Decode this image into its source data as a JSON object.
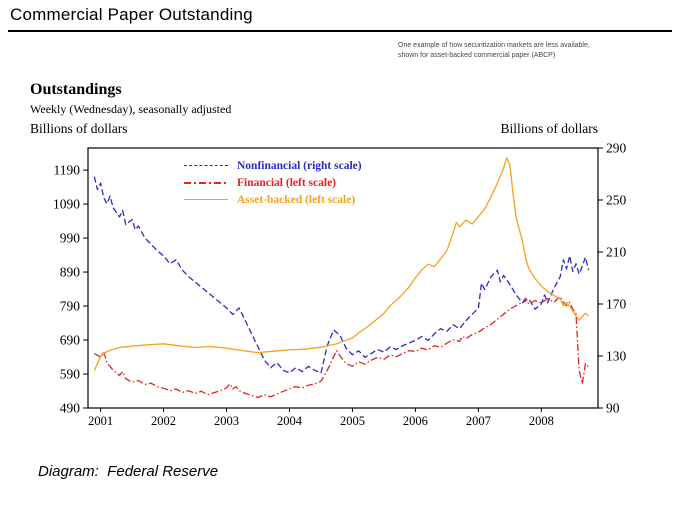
{
  "header": {
    "title": "Commercial Paper Outstanding"
  },
  "note": {
    "line1": "One example of how securitization markets are less available,",
    "line2": "shown for asset-backed commercial paper (ABCP)"
  },
  "chart": {
    "heading": "Outstandings",
    "subtitle": "Weekly (Wednesday), seasonally adjusted",
    "left_unit": "Billions of dollars",
    "right_unit": "Billions of dollars"
  },
  "footer": {
    "credit": "Diagram:  Federal Reserve"
  },
  "chart_data": {
    "type": "line",
    "title": "Outstandings",
    "subtitle": "Weekly (Wednesday), seasonally adjusted",
    "legend_position": "top-center-inside",
    "grid": false,
    "x_axis": {
      "ticks": [
        2001,
        2002,
        2003,
        2004,
        2005,
        2006,
        2007,
        2008
      ],
      "range": [
        2000.8,
        2008.9
      ]
    },
    "left_axis": {
      "label": "Billions of dollars",
      "ticks": [
        490,
        590,
        690,
        790,
        890,
        990,
        1090,
        1190
      ],
      "range_at_plot": [
        490,
        1255
      ]
    },
    "right_axis": {
      "label": "Billions of dollars",
      "ticks": [
        90,
        130,
        170,
        210,
        250,
        290
      ],
      "range_at_plot": [
        90,
        290
      ]
    },
    "series": [
      {
        "name": "Nonfinancial (right scale)",
        "scale": "right",
        "color": "#2a2ac8",
        "dash": "6,3",
        "points": [
          [
            2000.9,
            268
          ],
          [
            2000.95,
            258
          ],
          [
            2001.0,
            263
          ],
          [
            2001.05,
            252
          ],
          [
            2001.1,
            247
          ],
          [
            2001.15,
            253
          ],
          [
            2001.2,
            244
          ],
          [
            2001.3,
            237
          ],
          [
            2001.35,
            242
          ],
          [
            2001.4,
            231
          ],
          [
            2001.5,
            235
          ],
          [
            2001.55,
            227
          ],
          [
            2001.6,
            230
          ],
          [
            2001.7,
            221
          ],
          [
            2001.8,
            216
          ],
          [
            2001.9,
            211
          ],
          [
            2002.0,
            207
          ],
          [
            2002.1,
            201
          ],
          [
            2002.2,
            204
          ],
          [
            2002.3,
            196
          ],
          [
            2002.4,
            191
          ],
          [
            2002.5,
            187
          ],
          [
            2002.6,
            183
          ],
          [
            2002.7,
            179
          ],
          [
            2002.8,
            175
          ],
          [
            2002.9,
            171
          ],
          [
            2003.0,
            167
          ],
          [
            2003.1,
            162
          ],
          [
            2003.2,
            167
          ],
          [
            2003.3,
            157
          ],
          [
            2003.4,
            147
          ],
          [
            2003.5,
            137
          ],
          [
            2003.6,
            127
          ],
          [
            2003.7,
            121
          ],
          [
            2003.8,
            125
          ],
          [
            2003.9,
            119
          ],
          [
            2004.0,
            117
          ],
          [
            2004.1,
            121
          ],
          [
            2004.2,
            118
          ],
          [
            2004.3,
            122
          ],
          [
            2004.4,
            119
          ],
          [
            2004.5,
            117
          ],
          [
            2004.6,
            138
          ],
          [
            2004.7,
            150
          ],
          [
            2004.8,
            146
          ],
          [
            2004.9,
            136
          ],
          [
            2005.0,
            131
          ],
          [
            2005.1,
            134
          ],
          [
            2005.2,
            129
          ],
          [
            2005.3,
            132
          ],
          [
            2005.4,
            135
          ],
          [
            2005.5,
            133
          ],
          [
            2005.6,
            137
          ],
          [
            2005.7,
            135
          ],
          [
            2005.8,
            138
          ],
          [
            2005.9,
            140
          ],
          [
            2006.0,
            142
          ],
          [
            2006.1,
            145
          ],
          [
            2006.2,
            142
          ],
          [
            2006.3,
            147
          ],
          [
            2006.4,
            151
          ],
          [
            2006.5,
            149
          ],
          [
            2006.6,
            154
          ],
          [
            2006.7,
            151
          ],
          [
            2006.8,
            157
          ],
          [
            2006.9,
            162
          ],
          [
            2007.0,
            167
          ],
          [
            2007.05,
            186
          ],
          [
            2007.1,
            181
          ],
          [
            2007.2,
            191
          ],
          [
            2007.3,
            196
          ],
          [
            2007.35,
            187
          ],
          [
            2007.4,
            192
          ],
          [
            2007.5,
            185
          ],
          [
            2007.6,
            177
          ],
          [
            2007.7,
            171
          ],
          [
            2007.8,
            174
          ],
          [
            2007.9,
            166
          ],
          [
            2008.0,
            170
          ],
          [
            2008.05,
            177
          ],
          [
            2008.1,
            171
          ],
          [
            2008.2,
            182
          ],
          [
            2008.3,
            191
          ],
          [
            2008.35,
            204
          ],
          [
            2008.4,
            197
          ],
          [
            2008.45,
            207
          ],
          [
            2008.5,
            195
          ],
          [
            2008.55,
            201
          ],
          [
            2008.6,
            193
          ],
          [
            2008.65,
            199
          ],
          [
            2008.7,
            206
          ],
          [
            2008.75,
            196
          ]
        ]
      },
      {
        "name": "Financial (left scale)",
        "scale": "left",
        "color": "#e32222",
        "dash": "7,2.5,1.5,2.5",
        "points": [
          [
            2000.9,
            650
          ],
          [
            2001.0,
            640
          ],
          [
            2001.05,
            656
          ],
          [
            2001.1,
            624
          ],
          [
            2001.2,
            601
          ],
          [
            2001.3,
            586
          ],
          [
            2001.35,
            597
          ],
          [
            2001.4,
            576
          ],
          [
            2001.5,
            566
          ],
          [
            2001.6,
            571
          ],
          [
            2001.7,
            559
          ],
          [
            2001.8,
            563
          ],
          [
            2001.9,
            553
          ],
          [
            2002.0,
            548
          ],
          [
            2002.1,
            541
          ],
          [
            2002.2,
            546
          ],
          [
            2002.3,
            536
          ],
          [
            2002.4,
            541
          ],
          [
            2002.5,
            533
          ],
          [
            2002.6,
            539
          ],
          [
            2002.7,
            529
          ],
          [
            2002.8,
            535
          ],
          [
            2002.9,
            541
          ],
          [
            2003.0,
            549
          ],
          [
            2003.05,
            561
          ],
          [
            2003.1,
            546
          ],
          [
            2003.15,
            553
          ],
          [
            2003.2,
            541
          ],
          [
            2003.3,
            533
          ],
          [
            2003.4,
            527
          ],
          [
            2003.5,
            521
          ],
          [
            2003.6,
            529
          ],
          [
            2003.7,
            523
          ],
          [
            2003.8,
            531
          ],
          [
            2003.9,
            539
          ],
          [
            2004.0,
            546
          ],
          [
            2004.1,
            553
          ],
          [
            2004.2,
            549
          ],
          [
            2004.3,
            557
          ],
          [
            2004.4,
            561
          ],
          [
            2004.5,
            569
          ],
          [
            2004.6,
            601
          ],
          [
            2004.7,
            641
          ],
          [
            2004.75,
            659
          ],
          [
            2004.8,
            644
          ],
          [
            2004.9,
            621
          ],
          [
            2005.0,
            613
          ],
          [
            2005.1,
            626
          ],
          [
            2005.2,
            619
          ],
          [
            2005.3,
            631
          ],
          [
            2005.4,
            639
          ],
          [
            2005.5,
            633
          ],
          [
            2005.6,
            646
          ],
          [
            2005.7,
            641
          ],
          [
            2005.8,
            651
          ],
          [
            2005.9,
            659
          ],
          [
            2006.0,
            656
          ],
          [
            2006.1,
            666
          ],
          [
            2006.2,
            661
          ],
          [
            2006.3,
            673
          ],
          [
            2006.4,
            669
          ],
          [
            2006.5,
            681
          ],
          [
            2006.6,
            691
          ],
          [
            2006.7,
            686
          ],
          [
            2006.75,
            701
          ],
          [
            2006.8,
            694
          ],
          [
            2006.9,
            706
          ],
          [
            2007.0,
            713
          ],
          [
            2007.1,
            726
          ],
          [
            2007.2,
            736
          ],
          [
            2007.3,
            751
          ],
          [
            2007.4,
            766
          ],
          [
            2007.5,
            781
          ],
          [
            2007.6,
            791
          ],
          [
            2007.7,
            801
          ],
          [
            2007.75,
            813
          ],
          [
            2007.8,
            796
          ],
          [
            2007.9,
            806
          ],
          [
            2008.0,
            799
          ],
          [
            2008.1,
            812
          ],
          [
            2008.2,
            801
          ],
          [
            2008.3,
            818
          ],
          [
            2008.35,
            801
          ],
          [
            2008.4,
            791
          ],
          [
            2008.45,
            801
          ],
          [
            2008.5,
            781
          ],
          [
            2008.55,
            768
          ],
          [
            2008.6,
            601
          ],
          [
            2008.65,
            561
          ],
          [
            2008.7,
            621
          ],
          [
            2008.75,
            611
          ]
        ]
      },
      {
        "name": "Asset-backed (left scale)",
        "scale": "left",
        "color": "#f2a41e",
        "dash": "",
        "points": [
          [
            2000.9,
            600
          ],
          [
            2001.0,
            641
          ],
          [
            2001.1,
            656
          ],
          [
            2001.2,
            663
          ],
          [
            2001.3,
            668
          ],
          [
            2001.5,
            672
          ],
          [
            2001.75,
            676
          ],
          [
            2002.0,
            679
          ],
          [
            2002.25,
            673
          ],
          [
            2002.5,
            668
          ],
          [
            2002.75,
            671
          ],
          [
            2003.0,
            666
          ],
          [
            2003.25,
            659
          ],
          [
            2003.5,
            653
          ],
          [
            2003.75,
            657
          ],
          [
            2004.0,
            661
          ],
          [
            2004.25,
            663
          ],
          [
            2004.5,
            669
          ],
          [
            2004.75,
            679
          ],
          [
            2005.0,
            696
          ],
          [
            2005.1,
            711
          ],
          [
            2005.25,
            731
          ],
          [
            2005.4,
            753
          ],
          [
            2005.5,
            769
          ],
          [
            2005.6,
            791
          ],
          [
            2005.75,
            816
          ],
          [
            2005.9,
            846
          ],
          [
            2006.0,
            873
          ],
          [
            2006.1,
            896
          ],
          [
            2006.2,
            913
          ],
          [
            2006.3,
            906
          ],
          [
            2006.4,
            929
          ],
          [
            2006.5,
            953
          ],
          [
            2006.6,
            1006
          ],
          [
            2006.65,
            1036
          ],
          [
            2006.7,
            1023
          ],
          [
            2006.8,
            1043
          ],
          [
            2006.9,
            1031
          ],
          [
            2007.0,
            1053
          ],
          [
            2007.1,
            1076
          ],
          [
            2007.2,
            1111
          ],
          [
            2007.3,
            1151
          ],
          [
            2007.4,
            1196
          ],
          [
            2007.45,
            1226
          ],
          [
            2007.5,
            1206
          ],
          [
            2007.55,
            1121
          ],
          [
            2007.6,
            1051
          ],
          [
            2007.7,
            981
          ],
          [
            2007.75,
            931
          ],
          [
            2007.8,
            901
          ],
          [
            2007.9,
            871
          ],
          [
            2008.0,
            849
          ],
          [
            2008.1,
            833
          ],
          [
            2008.2,
            821
          ],
          [
            2008.3,
            811
          ],
          [
            2008.35,
            791
          ],
          [
            2008.4,
            801
          ],
          [
            2008.45,
            789
          ],
          [
            2008.5,
            776
          ],
          [
            2008.55,
            761
          ],
          [
            2008.6,
            749
          ],
          [
            2008.65,
            759
          ],
          [
            2008.7,
            769
          ],
          [
            2008.75,
            761
          ]
        ]
      }
    ]
  }
}
